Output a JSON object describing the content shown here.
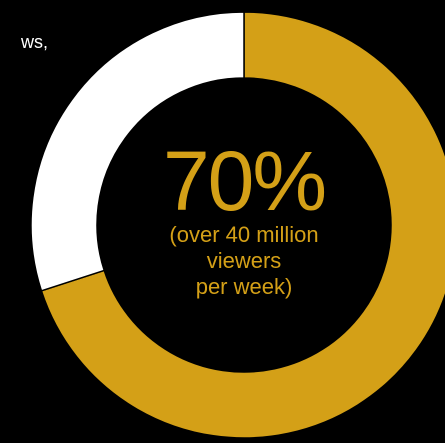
{
  "left_text": "ws,",
  "chart_data": {
    "type": "pie",
    "variant": "donut",
    "slices": [
      {
        "label": "over 40 million viewers per week",
        "value": 70,
        "color": "#d4a017"
      },
      {
        "label": "",
        "value": 30,
        "color": "#ffffff"
      }
    ],
    "center_label": {
      "percent": "70%",
      "line1": "(over 40 million",
      "line2": "viewers",
      "line3": "per week)"
    }
  },
  "colors": {
    "background": "#000000",
    "accent": "#d4a017",
    "secondary": "#ffffff"
  }
}
